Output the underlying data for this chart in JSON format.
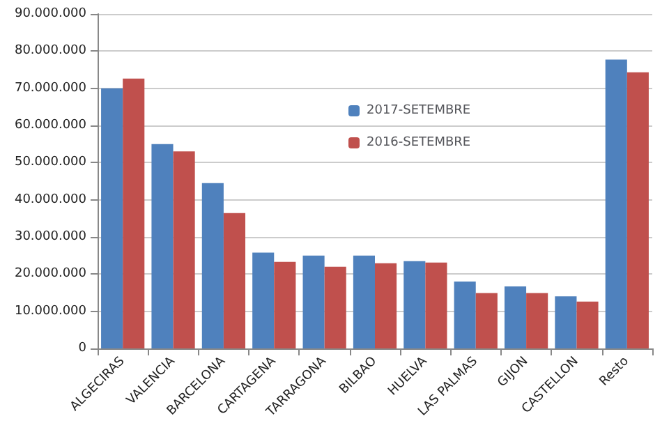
{
  "chart_data": {
    "type": "bar",
    "categories": [
      "ALGECIRAS",
      "VALENCIA",
      "BARCELONA",
      "CARTAGENA",
      "TARRAGONA",
      "BILBAO",
      "HUELVA",
      "LAS PALMAS",
      "GIJON",
      "CASTELLON",
      "Resto"
    ],
    "series": [
      {
        "name": "2017-SETEMBRE",
        "color": "#4f81bd",
        "values": [
          70000000,
          55000000,
          44500000,
          25800000,
          25000000,
          25000000,
          23500000,
          18000000,
          16700000,
          14000000,
          77700000
        ]
      },
      {
        "name": "2016-SETEMBRE",
        "color": "#c0504d",
        "values": [
          72600000,
          53000000,
          36400000,
          23300000,
          22000000,
          22900000,
          23100000,
          14900000,
          14900000,
          12600000,
          74300000
        ]
      }
    ],
    "ylim": [
      0,
      90000000
    ],
    "yticks": [
      {
        "value": 0,
        "label": "0"
      },
      {
        "value": 10000000,
        "label": "10.000.000"
      },
      {
        "value": 20000000,
        "label": "20.000.000"
      },
      {
        "value": 30000000,
        "label": "30.000.000"
      },
      {
        "value": 40000000,
        "label": "40.000.000"
      },
      {
        "value": 50000000,
        "label": "50.000.000"
      },
      {
        "value": 60000000,
        "label": "60.000.000"
      },
      {
        "value": 70000000,
        "label": "70.000.000"
      },
      {
        "value": 80000000,
        "label": "80.000.000"
      },
      {
        "value": 90000000,
        "label": "90.000.000"
      }
    ],
    "grid": "y",
    "legend": "top"
  }
}
